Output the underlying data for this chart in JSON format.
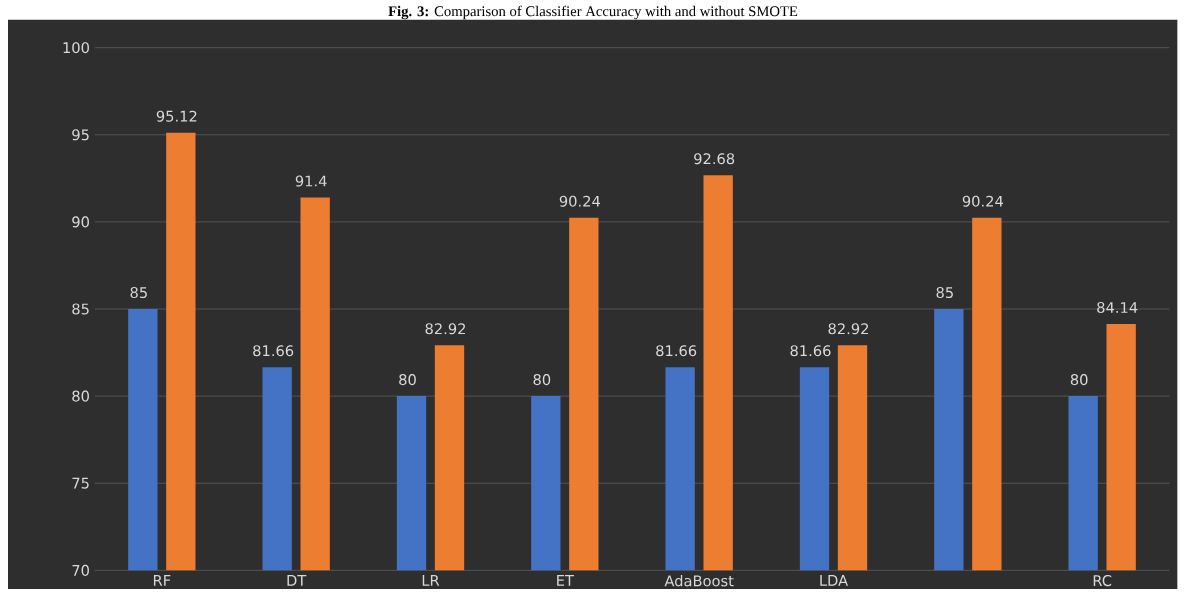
{
  "chart_data": {
    "type": "bar",
    "title": "**Fig. 3:** Comparison of Classifier Accuracy with and without SMOTE",
    "categories": [
      "RF",
      "DT",
      "LR",
      "ET",
      "AdaBoost",
      "LDA",
      null,
      "RC"
    ],
    "series": [
      {
        "color": "#4472c4",
        "values": [
          85,
          81.66,
          80,
          80,
          81.66,
          81.66,
          85,
          80
        ]
      },
      {
        "color": "#ed7d31",
        "values": [
          95.12,
          91.4,
          82.92,
          90.24,
          92.68,
          82.92,
          90.24,
          84.14
        ]
      }
    ],
    "ylim": [
      70,
      100
    ],
    "yticks": [
      70,
      75,
      80,
      85,
      90,
      95,
      100
    ],
    "grid": "y",
    "data_labels": true
  }
}
